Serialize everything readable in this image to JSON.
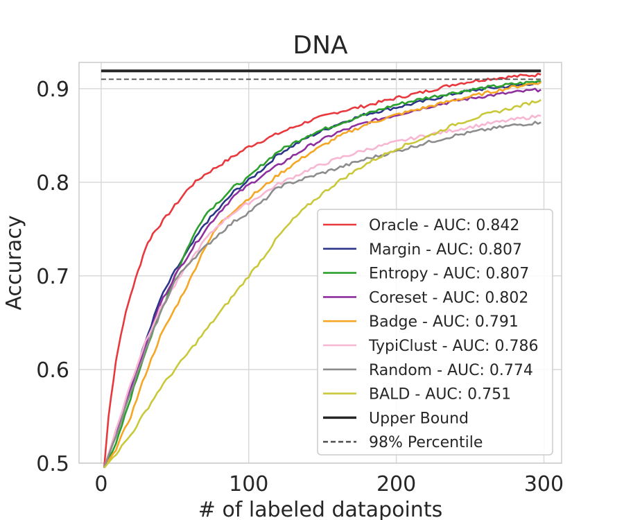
{
  "chart_data": {
    "type": "line",
    "title": "DNA",
    "xlabel": "# of labeled datapoints",
    "ylabel": "Accuracy",
    "xlim": [
      -15,
      312
    ],
    "ylim": [
      0.5,
      0.928
    ],
    "xticks": [
      0,
      100,
      200,
      300
    ],
    "xtick_labels": [
      "0",
      "100",
      "200",
      "300"
    ],
    "yticks": [
      0.5,
      0.6,
      0.7,
      0.8,
      0.9
    ],
    "ytick_labels": [
      "0.5",
      "0.6",
      "0.7",
      "0.8",
      "0.9"
    ],
    "grid": true,
    "legend_position": "lower-right",
    "series": [
      {
        "name": "Oracle - AUC: 0.842",
        "color": "#e8383d",
        "width": 2.6,
        "points": [
          [
            2,
            0.495
          ],
          [
            5,
            0.55
          ],
          [
            10,
            0.61
          ],
          [
            15,
            0.65
          ],
          [
            20,
            0.68
          ],
          [
            25,
            0.705
          ],
          [
            30,
            0.73
          ],
          [
            35,
            0.745
          ],
          [
            40,
            0.755
          ],
          [
            50,
            0.775
          ],
          [
            60,
            0.795
          ],
          [
            70,
            0.808
          ],
          [
            80,
            0.818
          ],
          [
            90,
            0.828
          ],
          [
            100,
            0.838
          ],
          [
            120,
            0.852
          ],
          [
            140,
            0.865
          ],
          [
            160,
            0.875
          ],
          [
            180,
            0.882
          ],
          [
            200,
            0.89
          ],
          [
            220,
            0.897
          ],
          [
            240,
            0.905
          ],
          [
            260,
            0.91
          ],
          [
            280,
            0.913
          ],
          [
            298,
            0.915
          ]
        ]
      },
      {
        "name": "Margin - AUC: 0.807",
        "color": "#2b3488",
        "width": 2.6,
        "points": [
          [
            2,
            0.495
          ],
          [
            10,
            0.53
          ],
          [
            20,
            0.58
          ],
          [
            30,
            0.63
          ],
          [
            40,
            0.675
          ],
          [
            50,
            0.705
          ],
          [
            60,
            0.73
          ],
          [
            70,
            0.755
          ],
          [
            80,
            0.772
          ],
          [
            90,
            0.79
          ],
          [
            100,
            0.802
          ],
          [
            110,
            0.815
          ],
          [
            120,
            0.83
          ],
          [
            140,
            0.848
          ],
          [
            160,
            0.862
          ],
          [
            180,
            0.873
          ],
          [
            200,
            0.88
          ],
          [
            220,
            0.887
          ],
          [
            240,
            0.895
          ],
          [
            260,
            0.9
          ],
          [
            280,
            0.903
          ],
          [
            298,
            0.907
          ]
        ]
      },
      {
        "name": "Entropy - AUC: 0.807",
        "color": "#2ca02c",
        "width": 2.6,
        "points": [
          [
            2,
            0.495
          ],
          [
            10,
            0.52
          ],
          [
            20,
            0.57
          ],
          [
            30,
            0.62
          ],
          [
            40,
            0.66
          ],
          [
            50,
            0.7
          ],
          [
            60,
            0.735
          ],
          [
            70,
            0.765
          ],
          [
            80,
            0.78
          ],
          [
            90,
            0.795
          ],
          [
            100,
            0.805
          ],
          [
            110,
            0.82
          ],
          [
            120,
            0.833
          ],
          [
            140,
            0.85
          ],
          [
            160,
            0.862
          ],
          [
            180,
            0.873
          ],
          [
            200,
            0.883
          ],
          [
            220,
            0.89
          ],
          [
            240,
            0.896
          ],
          [
            260,
            0.901
          ],
          [
            280,
            0.905
          ],
          [
            298,
            0.908
          ]
        ]
      },
      {
        "name": "Coreset - AUC: 0.802",
        "color": "#8e2f9e",
        "width": 2.6,
        "points": [
          [
            2,
            0.495
          ],
          [
            10,
            0.53
          ],
          [
            20,
            0.58
          ],
          [
            30,
            0.625
          ],
          [
            40,
            0.67
          ],
          [
            50,
            0.7
          ],
          [
            60,
            0.725
          ],
          [
            70,
            0.748
          ],
          [
            80,
            0.768
          ],
          [
            90,
            0.785
          ],
          [
            100,
            0.797
          ],
          [
            110,
            0.808
          ],
          [
            120,
            0.818
          ],
          [
            140,
            0.838
          ],
          [
            160,
            0.853
          ],
          [
            180,
            0.864
          ],
          [
            200,
            0.872
          ],
          [
            220,
            0.88
          ],
          [
            240,
            0.887
          ],
          [
            260,
            0.892
          ],
          [
            280,
            0.896
          ],
          [
            298,
            0.899
          ]
        ]
      },
      {
        "name": "Badge - AUC: 0.791",
        "color": "#f5a623",
        "width": 2.6,
        "points": [
          [
            2,
            0.495
          ],
          [
            10,
            0.515
          ],
          [
            20,
            0.55
          ],
          [
            30,
            0.595
          ],
          [
            40,
            0.635
          ],
          [
            50,
            0.665
          ],
          [
            60,
            0.695
          ],
          [
            70,
            0.73
          ],
          [
            80,
            0.755
          ],
          [
            90,
            0.77
          ],
          [
            100,
            0.783
          ],
          [
            110,
            0.795
          ],
          [
            120,
            0.808
          ],
          [
            140,
            0.83
          ],
          [
            160,
            0.848
          ],
          [
            180,
            0.862
          ],
          [
            200,
            0.872
          ],
          [
            220,
            0.88
          ],
          [
            240,
            0.888
          ],
          [
            260,
            0.895
          ],
          [
            280,
            0.902
          ],
          [
            298,
            0.907
          ]
        ]
      },
      {
        "name": "TypiClust - AUC: 0.786",
        "color": "#f7b6d2",
        "width": 2.6,
        "points": [
          [
            2,
            0.495
          ],
          [
            10,
            0.535
          ],
          [
            20,
            0.585
          ],
          [
            30,
            0.63
          ],
          [
            40,
            0.665
          ],
          [
            50,
            0.69
          ],
          [
            60,
            0.715
          ],
          [
            70,
            0.738
          ],
          [
            80,
            0.755
          ],
          [
            90,
            0.768
          ],
          [
            100,
            0.778
          ],
          [
            110,
            0.788
          ],
          [
            120,
            0.798
          ],
          [
            140,
            0.813
          ],
          [
            160,
            0.825
          ],
          [
            180,
            0.835
          ],
          [
            200,
            0.843
          ],
          [
            220,
            0.85
          ],
          [
            240,
            0.856
          ],
          [
            260,
            0.862
          ],
          [
            280,
            0.867
          ],
          [
            298,
            0.871
          ]
        ]
      },
      {
        "name": "Random - AUC: 0.774",
        "color": "#8c8c8c",
        "width": 2.6,
        "points": [
          [
            2,
            0.495
          ],
          [
            10,
            0.53
          ],
          [
            20,
            0.575
          ],
          [
            30,
            0.62
          ],
          [
            40,
            0.66
          ],
          [
            50,
            0.695
          ],
          [
            60,
            0.715
          ],
          [
            70,
            0.73
          ],
          [
            80,
            0.745
          ],
          [
            90,
            0.758
          ],
          [
            100,
            0.768
          ],
          [
            110,
            0.78
          ],
          [
            120,
            0.795
          ],
          [
            130,
            0.8
          ],
          [
            140,
            0.805
          ],
          [
            160,
            0.815
          ],
          [
            180,
            0.825
          ],
          [
            200,
            0.833
          ],
          [
            220,
            0.842
          ],
          [
            240,
            0.85
          ],
          [
            260,
            0.856
          ],
          [
            280,
            0.861
          ],
          [
            298,
            0.864
          ]
        ]
      },
      {
        "name": "BALD - AUC: 0.751",
        "color": "#c9c83a",
        "width": 2.6,
        "points": [
          [
            2,
            0.495
          ],
          [
            10,
            0.51
          ],
          [
            20,
            0.53
          ],
          [
            30,
            0.555
          ],
          [
            40,
            0.58
          ],
          [
            50,
            0.6
          ],
          [
            60,
            0.62
          ],
          [
            70,
            0.64
          ],
          [
            80,
            0.66
          ],
          [
            90,
            0.68
          ],
          [
            100,
            0.7
          ],
          [
            110,
            0.72
          ],
          [
            120,
            0.742
          ],
          [
            130,
            0.76
          ],
          [
            140,
            0.775
          ],
          [
            150,
            0.788
          ],
          [
            160,
            0.8
          ],
          [
            170,
            0.81
          ],
          [
            180,
            0.82
          ],
          [
            190,
            0.828
          ],
          [
            200,
            0.836
          ],
          [
            220,
            0.848
          ],
          [
            240,
            0.862
          ],
          [
            260,
            0.872
          ],
          [
            280,
            0.88
          ],
          [
            298,
            0.888
          ]
        ]
      },
      {
        "name": "Upper Bound",
        "color": "#262626",
        "width": 4,
        "dash": "",
        "points": [
          [
            0,
            0.919
          ],
          [
            298,
            0.919
          ]
        ]
      },
      {
        "name": "98% Percentile",
        "color": "#555555",
        "width": 1.8,
        "dash": "7,4",
        "points": [
          [
            0,
            0.91
          ],
          [
            298,
            0.91
          ]
        ]
      }
    ]
  }
}
